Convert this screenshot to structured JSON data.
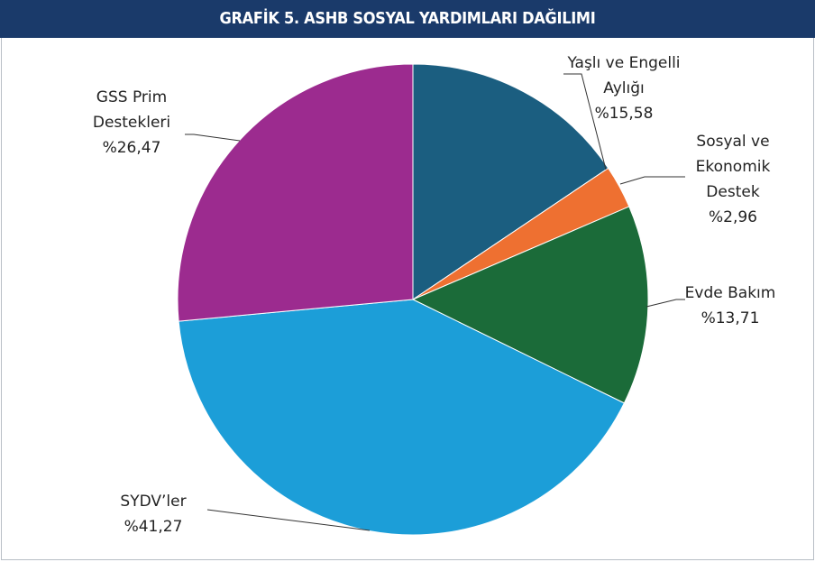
{
  "chart_data": {
    "type": "pie",
    "title": "GRAFİK 5. ASHB SOSYAL YARDIMLARI DAĞILIMI",
    "categories": [
      "Yaşlı ve Engelli Aylığı",
      "Sosyal ve Ekonomik Destek",
      "Evde Bakım",
      "SYDV’ler",
      "GSS Prim Destekleri"
    ],
    "values": [
      15.58,
      2.96,
      13.71,
      41.27,
      26.47
    ],
    "value_labels": [
      "%15,58",
      "%2,96",
      "%13,71",
      "%41,27",
      "%26,47"
    ],
    "colors": [
      "#1b5e80",
      "#ee7031",
      "#1b6b39",
      "#1c9ed8",
      "#9c2b8f"
    ]
  }
}
